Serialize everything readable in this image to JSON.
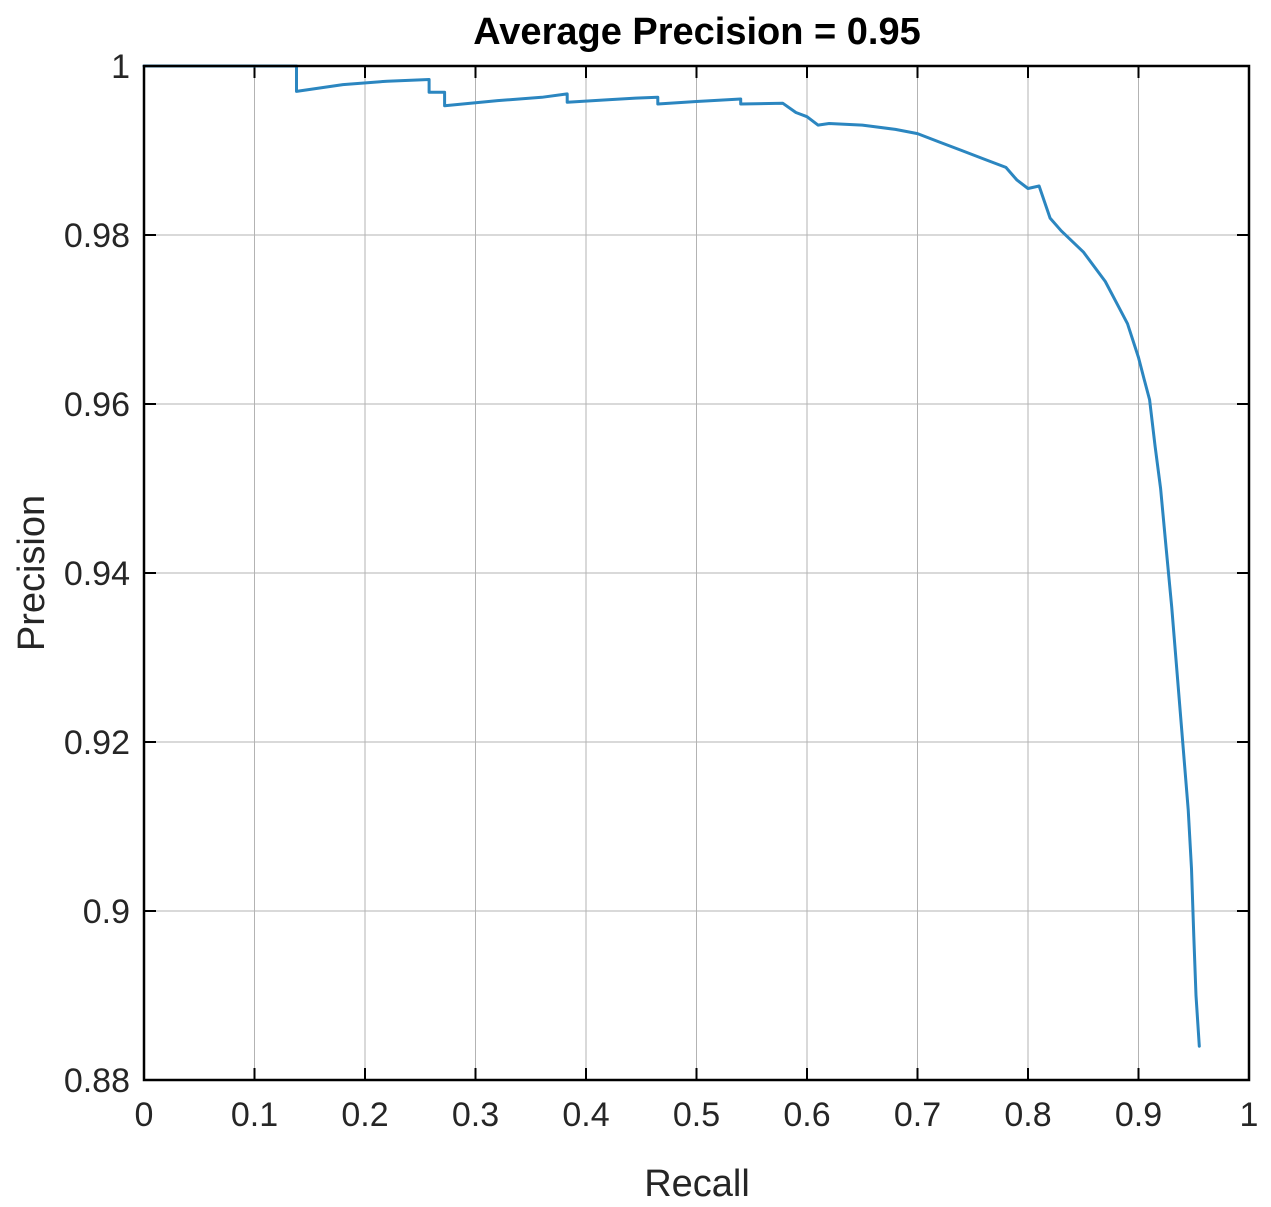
{
  "chart_data": {
    "type": "line",
    "title": "Average Precision = 0.95",
    "xlabel": "Recall",
    "ylabel": "Precision",
    "xlim": [
      0,
      1
    ],
    "ylim": [
      0.88,
      1
    ],
    "x_ticks": [
      "0",
      "0.1",
      "0.2",
      "0.3",
      "0.4",
      "0.5",
      "0.6",
      "0.7",
      "0.8",
      "0.9",
      "1"
    ],
    "y_ticks": [
      "0.88",
      "0.9",
      "0.92",
      "0.94",
      "0.96",
      "0.98",
      "1"
    ],
    "grid": true,
    "line_color": "#2b86c0",
    "series": [
      {
        "x": [
          0,
          0.138,
          0.138,
          0.18,
          0.22,
          0.258,
          0.258,
          0.272,
          0.272,
          0.32,
          0.36,
          0.383,
          0.383,
          0.42,
          0.445,
          0.465,
          0.465,
          0.5,
          0.54,
          0.54,
          0.578,
          0.59,
          0.6,
          0.61,
          0.62,
          0.65,
          0.68,
          0.7,
          0.72,
          0.74,
          0.76,
          0.78,
          0.79,
          0.8,
          0.81,
          0.82,
          0.83,
          0.85,
          0.87,
          0.88,
          0.89,
          0.9,
          0.905,
          0.91,
          0.915,
          0.92,
          0.925,
          0.93,
          0.935,
          0.94,
          0.945,
          0.948,
          0.95,
          0.952,
          0.955
        ],
        "y": [
          1.0,
          1.0,
          0.997,
          0.9978,
          0.9982,
          0.9984,
          0.9969,
          0.9969,
          0.9953,
          0.9959,
          0.9963,
          0.9967,
          0.9957,
          0.996,
          0.9962,
          0.9963,
          0.9955,
          0.9958,
          0.9961,
          0.9955,
          0.9956,
          0.9945,
          0.994,
          0.993,
          0.9932,
          0.993,
          0.9925,
          0.992,
          0.991,
          0.99,
          0.989,
          0.988,
          0.9865,
          0.9855,
          0.9858,
          0.982,
          0.9805,
          0.978,
          0.9745,
          0.972,
          0.9695,
          0.9655,
          0.963,
          0.9605,
          0.955,
          0.95,
          0.943,
          0.936,
          0.928,
          0.92,
          0.912,
          0.905,
          0.897,
          0.89,
          0.884
        ]
      }
    ]
  }
}
